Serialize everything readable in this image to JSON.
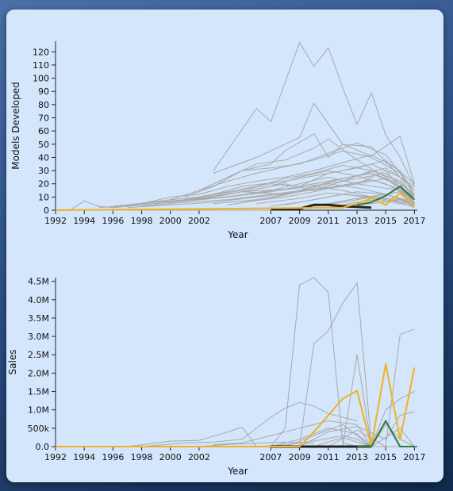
{
  "chart_data": [
    {
      "type": "line",
      "xlabel": "Year",
      "ylabel": "Models Developed",
      "x_ticks": [
        "1992",
        "1994",
        "1996",
        "1998",
        "2000",
        "2002",
        "2007",
        "2009",
        "2011",
        "2013",
        "2015",
        "2017"
      ],
      "y_ticks": [
        "0",
        "10",
        "20",
        "30",
        "40",
        "50",
        "60",
        "70",
        "80",
        "90",
        "100",
        "110",
        "120"
      ],
      "xlim": [
        1992,
        2017
      ],
      "ylim": [
        0,
        128
      ],
      "grid": false,
      "background_series": [
        {
          "x": [
            2003,
            2006,
            2007,
            2009,
            2010,
            2011,
            2012,
            2013,
            2014,
            2015,
            2016,
            2017
          ],
          "values": [
            30,
            77,
            67,
            127,
            109,
            123,
            93,
            65,
            89,
            57,
            40,
            18
          ]
        },
        {
          "x": [
            2003,
            2006,
            2008,
            2009,
            2010,
            2012,
            2014,
            2016,
            2017
          ],
          "values": [
            28,
            40,
            50,
            55,
            81,
            50,
            41,
            56,
            20
          ]
        },
        {
          "x": [
            2003,
            2005,
            2007,
            2008,
            2010,
            2011,
            2012,
            2014,
            2015,
            2016,
            2017
          ],
          "values": [
            20,
            30,
            35,
            45,
            58,
            40,
            50,
            48,
            37,
            25,
            15
          ]
        },
        {
          "x": [
            2002,
            2004,
            2006,
            2008,
            2010,
            2011,
            2013,
            2015,
            2017
          ],
          "values": [
            15,
            25,
            35,
            38,
            47,
            54,
            38,
            25,
            10
          ]
        },
        {
          "x": [
            2001,
            2003,
            2005,
            2007,
            2009,
            2011,
            2013,
            2015,
            2017
          ],
          "values": [
            10,
            18,
            30,
            32,
            35,
            43,
            51,
            42,
            15
          ]
        },
        {
          "x": [
            2000,
            2002,
            2004,
            2006,
            2008,
            2010,
            2012,
            2014,
            2016,
            2017
          ],
          "values": [
            8,
            15,
            22,
            28,
            33,
            38,
            45,
            40,
            28,
            12
          ]
        },
        {
          "x": [
            1998,
            2000,
            2002,
            2004,
            2006,
            2008,
            2010,
            2012,
            2014,
            2016,
            2017
          ],
          "values": [
            5,
            10,
            12,
            18,
            22,
            25,
            30,
            36,
            42,
            30,
            10
          ]
        },
        {
          "x": [
            1997,
            2000,
            2002,
            2005,
            2007,
            2009,
            2011,
            2013,
            2015,
            2017
          ],
          "values": [
            4,
            8,
            10,
            15,
            20,
            18,
            28,
            32,
            38,
            20
          ]
        },
        {
          "x": [
            1996,
            1999,
            2001,
            2003,
            2005,
            2008,
            2010,
            2012,
            2014,
            2016,
            2017
          ],
          "values": [
            3,
            6,
            8,
            12,
            18,
            22,
            26,
            30,
            35,
            25,
            8
          ]
        },
        {
          "x": [
            1995,
            1998,
            2001,
            2004,
            2007,
            2009,
            2011,
            2013,
            2015,
            2017
          ],
          "values": [
            2,
            4,
            7,
            10,
            15,
            20,
            25,
            20,
            30,
            5
          ]
        },
        {
          "x": [
            1993,
            1994,
            1995,
            1996,
            1998,
            2000,
            2003,
            2006,
            2009,
            2012,
            2015,
            2017
          ],
          "values": [
            0,
            7,
            3,
            2,
            5,
            7,
            9,
            13,
            17,
            22,
            28,
            12
          ]
        },
        {
          "x": [
            1996,
            1999,
            2002,
            2005,
            2008,
            2010,
            2012,
            2014,
            2016,
            2017
          ],
          "values": [
            2,
            5,
            9,
            14,
            12,
            18,
            24,
            28,
            18,
            6
          ]
        },
        {
          "x": [
            1997,
            2000,
            2003,
            2006,
            2008,
            2010,
            2012,
            2014,
            2016,
            2017
          ],
          "values": [
            3,
            6,
            10,
            16,
            20,
            15,
            22,
            30,
            22,
            10
          ]
        },
        {
          "x": [
            1999,
            2001,
            2004,
            2007,
            2009,
            2011,
            2013,
            2015,
            2017
          ],
          "values": [
            5,
            8,
            12,
            18,
            25,
            30,
            26,
            20,
            8
          ]
        },
        {
          "x": [
            2000,
            2003,
            2006,
            2008,
            2010,
            2012,
            2014,
            2016,
            2017
          ],
          "values": [
            6,
            12,
            18,
            24,
            28,
            34,
            30,
            22,
            8
          ]
        },
        {
          "x": [
            2001,
            2004,
            2007,
            2009,
            2011,
            2013,
            2015,
            2017
          ],
          "values": [
            7,
            10,
            14,
            18,
            22,
            26,
            32,
            18
          ]
        },
        {
          "x": [
            2002,
            2005,
            2008,
            2010,
            2012,
            2014,
            2016,
            2017
          ],
          "values": [
            8,
            14,
            16,
            20,
            24,
            28,
            20,
            4
          ]
        },
        {
          "x": [
            1998,
            2001,
            2004,
            2007,
            2010,
            2013,
            2016,
            2017
          ],
          "values": [
            3,
            6,
            8,
            12,
            16,
            20,
            15,
            6
          ]
        },
        {
          "x": [
            1997,
            2000,
            2003,
            2006,
            2009,
            2012,
            2015,
            2017
          ],
          "values": [
            2,
            4,
            6,
            10,
            14,
            18,
            24,
            8
          ]
        },
        {
          "x": [
            2003,
            2006,
            2008,
            2010,
            2012,
            2014,
            2016,
            2017
          ],
          "values": [
            5,
            8,
            12,
            18,
            15,
            10,
            6,
            2
          ]
        },
        {
          "x": [
            2004,
            2007,
            2009,
            2011,
            2013,
            2015,
            2017
          ],
          "values": [
            4,
            9,
            14,
            20,
            17,
            12,
            5
          ]
        },
        {
          "x": [
            2005,
            2008,
            2010,
            2012,
            2014,
            2016,
            2017
          ],
          "values": [
            6,
            10,
            14,
            19,
            23,
            16,
            6
          ]
        },
        {
          "x": [
            2006,
            2009,
            2011,
            2013,
            2015,
            2017
          ],
          "values": [
            5,
            9,
            13,
            11,
            7,
            3
          ]
        },
        {
          "x": [
            2007,
            2009,
            2011,
            2013,
            2015,
            2017
          ],
          "values": [
            3,
            6,
            10,
            14,
            12,
            4
          ]
        },
        {
          "x": [
            2008,
            2010,
            2012,
            2014,
            2016,
            2017
          ],
          "values": [
            4,
            8,
            12,
            10,
            14,
            5
          ]
        },
        {
          "x": [
            2009,
            2011,
            2013,
            2015,
            2017
          ],
          "values": [
            2,
            5,
            9,
            12,
            6
          ]
        },
        {
          "x": [
            2010,
            2012,
            2014,
            2016,
            2017
          ],
          "values": [
            3,
            6,
            10,
            8,
            3
          ]
        },
        {
          "x": [
            2011,
            2013,
            2015,
            2017
          ],
          "values": [
            2,
            6,
            9,
            4
          ]
        },
        {
          "x": [
            2012,
            2014,
            2016,
            2017
          ],
          "values": [
            3,
            5,
            8,
            3
          ]
        }
      ],
      "highlight_series": [
        {
          "color": "#222222",
          "width": 3,
          "x": [
            2007,
            2009,
            2010,
            2011,
            2012,
            2013,
            2014
          ],
          "values": [
            1,
            1,
            4,
            4,
            3,
            2.5,
            2
          ]
        },
        {
          "color": "#f0b21e",
          "width": 2,
          "x": [
            1992,
            2012,
            2013,
            2014,
            2015,
            2016,
            2017
          ],
          "values": [
            0,
            2,
            5,
            9,
            4,
            13,
            3
          ]
        },
        {
          "color": "#2e7a3c",
          "width": 2,
          "x": [
            2013,
            2014,
            2015,
            2016,
            2017
          ],
          "values": [
            4,
            6,
            11,
            18,
            8
          ]
        }
      ]
    },
    {
      "type": "line",
      "xlabel": "Year",
      "ylabel": "Sales",
      "x_ticks": [
        "1992",
        "1994",
        "1996",
        "1998",
        "2000",
        "2002",
        "2007",
        "2009",
        "2011",
        "2013",
        "2015",
        "2017"
      ],
      "y_ticks": [
        "0.0",
        "500k",
        "1.0M",
        "1.5M",
        "2.0M",
        "2.5M",
        "3.0M",
        "3.5M",
        "4.0M",
        "4.5M"
      ],
      "xlim": [
        1992,
        2017
      ],
      "ylim": [
        0,
        4600000
      ],
      "grid": false,
      "background_series": [
        {
          "x": [
            1992,
            2007,
            2008,
            2009,
            2010,
            2011,
            2012,
            2013,
            2014
          ],
          "values": [
            0,
            0,
            500000,
            4400000,
            4600000,
            4200000,
            100000,
            0,
            0
          ]
        },
        {
          "x": [
            2008,
            2009,
            2010,
            2011,
            2012,
            2013,
            2014
          ],
          "values": [
            0,
            0,
            2800000,
            3150000,
            3900000,
            4450000,
            50000
          ]
        },
        {
          "x": [
            2012,
            2013,
            2014
          ],
          "values": [
            0,
            2500000,
            0
          ]
        },
        {
          "x": [
            2013,
            2014,
            2015,
            2016,
            2017
          ],
          "values": [
            0,
            0,
            0,
            3050000,
            3200000
          ]
        },
        {
          "x": [
            2013,
            2014,
            2015,
            2016,
            2017
          ],
          "values": [
            0,
            0,
            1000000,
            1300000,
            1500000
          ]
        },
        {
          "x": [
            1997,
            2000,
            2002,
            2004,
            2005,
            2006
          ],
          "values": [
            0,
            150000,
            170000,
            400000,
            530000,
            0
          ]
        },
        {
          "x": [
            1998,
            2001,
            2003,
            2005,
            2007,
            2008,
            2009,
            2010,
            2011,
            2013
          ],
          "values": [
            0,
            100000,
            120000,
            200000,
            800000,
            1050000,
            1200000,
            1100000,
            900000,
            700000
          ]
        },
        {
          "x": [
            2003,
            2005,
            2007,
            2009,
            2011,
            2013,
            2014
          ],
          "values": [
            50000,
            100000,
            300000,
            500000,
            700000,
            600000,
            0
          ]
        },
        {
          "x": [
            2007,
            2009,
            2011,
            2013,
            2014
          ],
          "values": [
            0,
            200000,
            500000,
            350000,
            0
          ]
        },
        {
          "x": [
            2008,
            2010,
            2012,
            2014,
            2016,
            2017
          ],
          "values": [
            0,
            300000,
            600000,
            0,
            500000,
            0
          ]
        },
        {
          "x": [
            2009,
            2011,
            2013,
            2015,
            2016,
            2017
          ],
          "values": [
            0,
            400000,
            550000,
            200000,
            850000,
            950000
          ]
        },
        {
          "x": [
            2010,
            2012,
            2014,
            2015,
            2016,
            2017
          ],
          "values": [
            0,
            250000,
            0,
            600000,
            200000,
            0
          ]
        },
        {
          "x": [
            2011,
            2013,
            2015,
            2017
          ],
          "values": [
            0,
            450000,
            0,
            0
          ]
        },
        {
          "x": [
            2006,
            2008,
            2010,
            2012,
            2013,
            2014
          ],
          "values": [
            0,
            50000,
            150000,
            300000,
            200000,
            0
          ]
        },
        {
          "x": [
            2002,
            2004,
            2006,
            2008,
            2010
          ],
          "values": [
            0,
            60000,
            90000,
            120000,
            80000
          ]
        }
      ],
      "highlight_series": [
        {
          "color": "#222222",
          "width": 3,
          "x": [
            2007,
            2014
          ],
          "values": [
            0,
            0
          ]
        },
        {
          "color": "#f0b21e",
          "width": 2,
          "x": [
            1992,
            2009,
            2010,
            2011,
            2012,
            2013,
            2014,
            2015,
            2016,
            2017
          ],
          "values": [
            0,
            0,
            400000,
            850000,
            1300000,
            1520000,
            0,
            2250000,
            200000,
            2150000
          ]
        },
        {
          "color": "#2e7a3c",
          "width": 2,
          "x": [
            2013,
            2014,
            2015,
            2016,
            2017
          ],
          "values": [
            0,
            0,
            700000,
            0,
            0
          ]
        }
      ]
    }
  ]
}
